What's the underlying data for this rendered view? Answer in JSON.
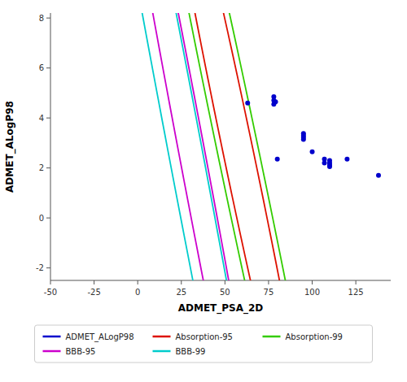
{
  "chart_data": {
    "type": "scatter",
    "title": "",
    "xlabel": "ADMET_PSA_2D",
    "ylabel": "ADMET_ALogP98",
    "xlim": [
      -50,
      145
    ],
    "ylim": [
      -2.5,
      8.2
    ],
    "xticks": [
      -50,
      -25,
      0,
      25,
      50,
      75,
      100,
      125
    ],
    "yticks": [
      -2,
      0,
      2,
      4,
      6,
      8
    ],
    "grid": false,
    "legend": "bottom",
    "x": [
      63,
      78,
      78,
      78,
      79,
      80,
      95,
      95,
      95,
      95,
      100,
      107,
      107,
      110,
      110,
      110,
      110,
      120,
      138
    ],
    "series": [
      {
        "name": "ADMET_ALogP98",
        "color": "#0000CC",
        "marker": "circle",
        "values": [
          4.6,
          4.85,
          4.7,
          4.55,
          4.65,
          2.35,
          3.38,
          3.3,
          3.22,
          3.14,
          2.65,
          2.35,
          2.2,
          2.3,
          2.2,
          2.12,
          2.05,
          2.35,
          1.7
        ]
      }
    ],
    "ellipses": [
      {
        "name": "Absorption-95",
        "color": "#DD1100",
        "center_x": 58,
        "center_y": 2.5,
        "width_x": 100,
        "width_y": 5.5,
        "angle_deg": -18
      },
      {
        "name": "Absorption-99",
        "color": "#33CC00",
        "center_x": 58,
        "center_y": 2.5,
        "width_x": 140,
        "width_y": 7.5,
        "angle_deg": -18
      },
      {
        "name": "BBB-95",
        "color": "#CC00CC",
        "center_x": 30,
        "center_y": 3.0,
        "width_x": 120,
        "width_y": 5.2,
        "angle_deg": -20
      },
      {
        "name": "BBB-99",
        "color": "#00CCCC",
        "center_x": 25,
        "center_y": 3.5,
        "width_x": 160,
        "width_y": 6.8,
        "angle_deg": -20
      }
    ]
  }
}
